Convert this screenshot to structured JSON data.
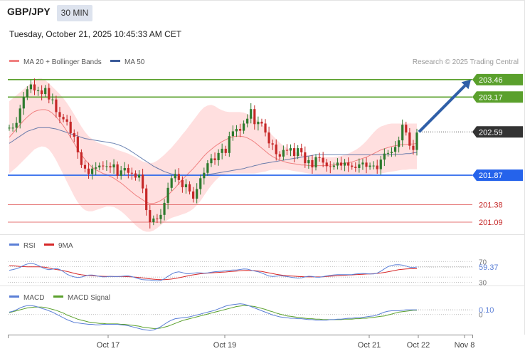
{
  "header": {
    "symbol": "GBP/JPY",
    "timeframe": "30 MIN",
    "datetime": "Tuesday, October 21, 2025 10:45:33 AM CET"
  },
  "colors": {
    "up": "#2d7a2d",
    "down": "#c62828",
    "ma20": "#f08080",
    "bb_fill": "#ffd9d9",
    "ma50": "#3b5b9a",
    "resistance": "#5aa02c",
    "support_blue": "#2563eb",
    "support_red": "#e57373",
    "arrow": "#2f5fa8",
    "rsi": "#5b7fd6",
    "rsi_ma": "#d62728",
    "macd": "#5b7fd6",
    "macd_signal": "#5aa02c"
  },
  "chart_data": [
    {
      "type": "candlestick",
      "legend": [
        "MA 20 + Bollinger Bands",
        "MA 50"
      ],
      "copyright": "Research © 2025 Trading Central",
      "x_ticks": [
        "Oct 17",
        "Oct 19",
        "Oct 21",
        "Oct 22",
        "Nov 8"
      ],
      "ylim": [
        200.9,
        203.6
      ],
      "current_price": "202.59",
      "levels": [
        {
          "value": 203.46,
          "label": "203.46",
          "kind": "resistance"
        },
        {
          "value": 203.17,
          "label": "203.17",
          "kind": "resistance"
        },
        {
          "value": 201.87,
          "label": "201.87",
          "kind": "support_blue"
        },
        {
          "value": 201.38,
          "label": "201.38",
          "kind": "support_red"
        },
        {
          "value": 201.09,
          "label": "201.09",
          "kind": "support_red"
        }
      ],
      "close": [
        202.66,
        202.66,
        202.74,
        202.98,
        203.17,
        203.3,
        203.38,
        203.28,
        203.28,
        203.22,
        203.32,
        203.13,
        203.13,
        202.92,
        202.84,
        202.8,
        202.76,
        202.57,
        202.51,
        202.25,
        202.04,
        201.98,
        201.89,
        201.98,
        202.0,
        202.03,
        202.02,
        202.02,
        202.0,
        202.05,
        201.86,
        201.95,
        201.99,
        201.91,
        201.9,
        201.83,
        201.88,
        201.65,
        201.29,
        201.09,
        201.15,
        201.14,
        201.21,
        201.41,
        201.66,
        201.82,
        201.89,
        201.79,
        201.67,
        201.72,
        201.6,
        201.48,
        201.64,
        201.82,
        201.91,
        202.07,
        202.15,
        202.12,
        202.24,
        202.31,
        202.24,
        202.52,
        202.6,
        202.64,
        202.61,
        202.73,
        202.81,
        202.97,
        202.72,
        202.76,
        202.73,
        202.58,
        202.4,
        202.38,
        202.22,
        202.18,
        202.29,
        202.28,
        202.32,
        202.19,
        202.32,
        202.25,
        202.07,
        202.12,
        202.0,
        202.17,
        202.16,
        202.08,
        202.02,
        202.01,
        202.03,
        202.08,
        202.03,
        202.08,
        202.03,
        202.01,
        201.99,
        202.05,
        202.08,
        202.01,
        202.03,
        202.03,
        201.97,
        202.13,
        202.23,
        202.24,
        202.26,
        202.34,
        202.45,
        202.71,
        202.58,
        202.36,
        202.29,
        202.58
      ],
      "open": [
        202.66,
        202.66,
        202.66,
        202.74,
        202.98,
        203.17,
        203.3,
        203.38,
        203.28,
        203.28,
        203.22,
        203.32,
        203.13,
        203.13,
        202.92,
        202.84,
        202.8,
        202.76,
        202.57,
        202.51,
        202.25,
        202.04,
        201.98,
        201.89,
        201.98,
        202.0,
        202.03,
        202.02,
        202.02,
        202.0,
        202.05,
        201.86,
        201.95,
        201.99,
        201.91,
        201.9,
        201.83,
        201.88,
        201.65,
        201.29,
        201.09,
        201.15,
        201.14,
        201.21,
        201.41,
        201.66,
        201.82,
        201.89,
        201.79,
        201.67,
        201.72,
        201.6,
        201.48,
        201.64,
        201.82,
        201.91,
        202.07,
        202.15,
        202.12,
        202.24,
        202.31,
        202.24,
        202.52,
        202.6,
        202.64,
        202.61,
        202.73,
        202.81,
        202.97,
        202.72,
        202.76,
        202.73,
        202.58,
        202.4,
        202.38,
        202.22,
        202.18,
        202.29,
        202.28,
        202.32,
        202.19,
        202.32,
        202.25,
        202.07,
        202.12,
        202.0,
        202.17,
        202.16,
        202.08,
        202.02,
        202.01,
        202.03,
        202.08,
        202.03,
        202.08,
        202.03,
        202.01,
        201.99,
        202.05,
        202.08,
        202.01,
        202.03,
        202.03,
        201.97,
        202.13,
        202.23,
        202.24,
        202.26,
        202.34,
        202.45,
        202.71,
        202.58,
        202.36,
        202.29
      ],
      "ma20": [
        202.5,
        202.57,
        202.64,
        202.71,
        202.78,
        202.84,
        202.89,
        202.93,
        202.95,
        202.96,
        202.96,
        202.94,
        202.9,
        202.84,
        202.77,
        202.69,
        202.6,
        202.5,
        202.4,
        202.3,
        202.21,
        202.13,
        202.06,
        202.0,
        201.96,
        201.93,
        201.9,
        201.88,
        201.85,
        201.82,
        201.78,
        201.74,
        201.69,
        201.64,
        201.59,
        201.54,
        201.5,
        201.46,
        201.42,
        201.4,
        201.4,
        201.42,
        201.45,
        201.49,
        201.54,
        201.6,
        201.66,
        201.73,
        201.8,
        201.86,
        201.92,
        201.98,
        202.05,
        202.12,
        202.19,
        202.25,
        202.3,
        202.35,
        202.39,
        202.43,
        202.46,
        202.49,
        202.51,
        202.52,
        202.52,
        202.51,
        202.49,
        202.46,
        202.42,
        202.37,
        202.32,
        202.27,
        202.22,
        202.18,
        202.15,
        202.12,
        202.1,
        202.08,
        202.07,
        202.06,
        202.05,
        202.04,
        202.04,
        202.03,
        202.03,
        202.03,
        202.03,
        202.03,
        202.03,
        202.04,
        202.04,
        202.05,
        202.06,
        202.07,
        202.08,
        202.09,
        202.11,
        202.13,
        202.15,
        202.17,
        202.2,
        202.23,
        202.26,
        202.29,
        202.31,
        202.33,
        202.35,
        202.36,
        202.37,
        202.38,
        202.38,
        202.39,
        202.39,
        202.4
      ],
      "bb_upper": [
        203.1,
        203.15,
        203.2,
        203.25,
        203.3,
        203.35,
        203.4,
        203.45,
        203.48,
        203.48,
        203.45,
        203.4,
        203.34,
        203.28,
        203.22,
        203.15,
        203.07,
        202.98,
        202.88,
        202.78,
        202.68,
        202.59,
        202.52,
        202.47,
        202.43,
        202.4,
        202.38,
        202.36,
        202.34,
        202.32,
        202.29,
        202.27,
        202.25,
        202.23,
        202.2,
        202.17,
        202.13,
        202.1,
        202.08,
        202.07,
        202.08,
        202.11,
        202.16,
        202.21,
        202.27,
        202.33,
        202.4,
        202.47,
        202.55,
        202.62,
        202.7,
        202.78,
        202.86,
        202.94,
        203.0,
        203.03,
        203.04,
        203.02,
        202.98,
        202.95,
        202.93,
        202.92,
        202.92,
        202.92,
        202.92,
        202.91,
        202.89,
        202.86,
        202.82,
        202.77,
        202.72,
        202.66,
        202.59,
        202.53,
        202.47,
        202.41,
        202.36,
        202.32,
        202.29,
        202.26,
        202.24,
        202.22,
        202.21,
        202.2,
        202.19,
        202.18,
        202.17,
        202.17,
        202.17,
        202.17,
        202.17,
        202.18,
        202.19,
        202.21,
        202.23,
        202.26,
        202.29,
        202.33,
        202.38,
        202.44,
        202.51,
        202.58,
        202.64,
        202.68,
        202.7,
        202.72,
        202.73,
        202.73,
        202.73,
        202.73,
        202.73,
        202.73,
        202.73,
        202.73
      ],
      "bb_lower": [
        201.9,
        201.95,
        202.0,
        202.06,
        202.12,
        202.18,
        202.24,
        202.3,
        202.33,
        202.35,
        202.34,
        202.3,
        202.22,
        202.12,
        202.0,
        201.88,
        201.76,
        201.64,
        201.52,
        201.42,
        201.34,
        201.29,
        201.27,
        201.27,
        201.29,
        201.31,
        201.33,
        201.35,
        201.35,
        201.34,
        201.31,
        201.27,
        201.22,
        201.16,
        201.1,
        201.04,
        200.99,
        200.95,
        200.93,
        200.93,
        200.95,
        200.99,
        201.04,
        201.09,
        201.13,
        201.16,
        201.18,
        201.2,
        201.22,
        201.24,
        201.27,
        201.31,
        201.37,
        201.44,
        201.53,
        201.62,
        201.7,
        201.77,
        201.83,
        201.87,
        201.89,
        201.9,
        201.9,
        201.9,
        201.9,
        201.9,
        201.9,
        201.9,
        201.9,
        201.91,
        201.92,
        201.93,
        201.95,
        201.96,
        201.96,
        201.96,
        201.96,
        201.96,
        201.95,
        201.94,
        201.93,
        201.92,
        201.91,
        201.9,
        201.89,
        201.88,
        201.87,
        201.87,
        201.87,
        201.87,
        201.87,
        201.87,
        201.87,
        201.87,
        201.87,
        201.87,
        201.87,
        201.87,
        201.88,
        201.88,
        201.88,
        201.89,
        201.89,
        201.9,
        201.91,
        201.92,
        201.93,
        201.94,
        201.95,
        201.96,
        201.96,
        201.97,
        201.97,
        201.97
      ],
      "ma50": [
        202.4,
        202.44,
        202.48,
        202.52,
        202.56,
        202.6,
        202.62,
        202.64,
        202.66,
        202.66,
        202.66,
        202.66,
        202.65,
        202.64,
        202.62,
        202.6,
        202.58,
        202.56,
        202.54,
        202.52,
        202.5,
        202.48,
        202.47,
        202.46,
        202.45,
        202.44,
        202.43,
        202.42,
        202.41,
        202.4,
        202.38,
        202.36,
        202.33,
        202.3,
        202.26,
        202.22,
        202.18,
        202.14,
        202.1,
        202.06,
        202.02,
        201.99,
        201.96,
        201.93,
        201.91,
        201.89,
        201.88,
        201.87,
        201.87,
        201.87,
        201.87,
        201.87,
        201.87,
        201.87,
        201.88,
        201.88,
        201.89,
        201.9,
        201.91,
        201.92,
        201.93,
        201.94,
        201.95,
        201.96,
        201.97,
        201.98,
        202.0,
        202.01,
        202.03,
        202.04,
        202.06,
        202.07,
        202.08,
        202.09,
        202.1,
        202.11,
        202.12,
        202.13,
        202.14,
        202.15,
        202.16,
        202.17,
        202.18,
        202.19,
        202.2,
        202.21,
        202.21,
        202.21,
        202.21,
        202.21,
        202.21,
        202.21,
        202.21,
        202.21,
        202.21,
        202.21,
        202.21,
        202.21,
        202.21,
        202.21,
        202.21,
        202.21,
        202.21,
        202.21,
        202.21,
        202.21,
        202.21,
        202.22,
        202.22,
        202.22,
        202.23,
        202.23,
        202.24,
        202.25
      ],
      "forecast_arrow": {
        "from": 202.59,
        "to": 203.46
      }
    },
    {
      "type": "line",
      "legend": [
        "RSI",
        "9MA"
      ],
      "ylim": [
        25,
        80
      ],
      "yticks": [
        {
          "value": 70,
          "label": "70"
        },
        {
          "value": 30,
          "label": "30"
        }
      ],
      "current_label": "59.37",
      "rsi": [
        53.0,
        54.4,
        56.1,
        58.7,
        62.7,
        65.2,
        66.2,
        65.2,
        62.5,
        58.8,
        55.7,
        54.2,
        55.2,
        56.6,
        54.6,
        50.4,
        45.5,
        42.3,
        40.2,
        39.0,
        40.0,
        42.1,
        43.7,
        44.0,
        42.8,
        41.1,
        40.3,
        40.5,
        41.3,
        41.0,
        40.9,
        41.4,
        42.1,
        42.2,
        40.8,
        38.7,
        36.5,
        34.9,
        34.5,
        34.2,
        33.2,
        32.4,
        33.2,
        36.5,
        41.3,
        45.7,
        48.9,
        50.1,
        48.6,
        46.5,
        46.4,
        47.5,
        48.3,
        47.9,
        47.6,
        48.0,
        49.2,
        50.3,
        50.8,
        51.2,
        52.2,
        53.1,
        53.4,
        53.6,
        54.6,
        55.6,
        55.3,
        53.4,
        51.6,
        50.2,
        47.8,
        44.8,
        42.1,
        41.2,
        41.7,
        42.3,
        41.9,
        40.9,
        39.9,
        38.8,
        37.9,
        38.4,
        40.3,
        41.5,
        41.1,
        39.8,
        39.6,
        40.8,
        42.2,
        43.2,
        44.1,
        44.6,
        44.5,
        44.5,
        44.5,
        44.8,
        45.8,
        46.5,
        46.9,
        46.5,
        46.0,
        46.0,
        47.6,
        51.2,
        55.8,
        60.0,
        62.4,
        63.6,
        63.9,
        62.9,
        61.2,
        58.9,
        58.4,
        59.4
      ],
      "ma9": [
        62.0,
        61.8,
        61.2,
        60.5,
        60.0,
        59.8,
        59.8,
        59.8,
        59.8,
        59.5,
        58.8,
        57.5,
        56.0,
        54.6,
        53.4,
        52.2,
        50.8,
        49.0,
        47.1,
        45.6,
        44.4,
        43.5,
        43.0,
        42.5,
        42.0,
        41.6,
        41.3,
        41.2,
        41.1,
        41.0,
        41.0,
        41.0,
        40.9,
        40.7,
        40.3,
        39.7,
        39.0,
        38.2,
        37.4,
        36.6,
        35.9,
        35.3,
        35.0,
        35.0,
        35.4,
        36.2,
        37.3,
        38.6,
        40.0,
        41.5,
        43.0,
        44.3,
        45.4,
        46.3,
        47.0,
        47.6,
        48.1,
        48.5,
        48.9,
        49.3,
        49.8,
        50.4,
        51.0,
        51.6,
        52.2,
        52.6,
        52.9,
        52.7,
        52.3,
        51.6,
        50.7,
        49.5,
        48.1,
        46.7,
        45.4,
        44.2,
        43.3,
        42.6,
        42.1,
        41.6,
        41.2,
        40.8,
        40.5,
        40.3,
        40.2,
        40.2,
        40.3,
        40.6,
        41.1,
        41.6,
        42.1,
        42.6,
        43.0,
        43.4,
        43.8,
        44.1,
        44.5,
        44.9,
        45.3,
        45.7,
        46.1,
        46.5,
        47.0,
        47.8,
        48.9,
        50.2,
        51.6,
        52.9,
        54.1,
        55.0,
        55.6,
        55.9,
        56.0,
        56.0
      ]
    },
    {
      "type": "line",
      "legend": [
        "MACD",
        "MACD Signal"
      ],
      "ylim": [
        -0.4,
        0.3
      ],
      "yticks": [
        {
          "value": 0,
          "label": "0"
        }
      ],
      "current_label": "0.10",
      "macd": [
        0.05,
        0.07,
        0.1,
        0.14,
        0.17,
        0.19,
        0.19,
        0.18,
        0.16,
        0.13,
        0.11,
        0.08,
        0.05,
        0.01,
        -0.03,
        -0.07,
        -0.11,
        -0.14,
        -0.17,
        -0.18,
        -0.19,
        -0.2,
        -0.21,
        -0.21,
        -0.22,
        -0.22,
        -0.21,
        -0.21,
        -0.21,
        -0.21,
        -0.21,
        -0.22,
        -0.23,
        -0.24,
        -0.26,
        -0.28,
        -0.3,
        -0.32,
        -0.33,
        -0.34,
        -0.33,
        -0.3,
        -0.26,
        -0.21,
        -0.16,
        -0.12,
        -0.09,
        -0.08,
        -0.07,
        -0.06,
        -0.05,
        -0.03,
        -0.01,
        0.01,
        0.03,
        0.05,
        0.07,
        0.09,
        0.12,
        0.15,
        0.18,
        0.2,
        0.21,
        0.22,
        0.23,
        0.22,
        0.2,
        0.17,
        0.14,
        0.11,
        0.08,
        0.05,
        0.02,
        -0.01,
        -0.03,
        -0.05,
        -0.06,
        -0.07,
        -0.08,
        -0.08,
        -0.09,
        -0.09,
        -0.1,
        -0.11,
        -0.11,
        -0.12,
        -0.12,
        -0.12,
        -0.12,
        -0.11,
        -0.11,
        -0.1,
        -0.1,
        -0.09,
        -0.08,
        -0.08,
        -0.07,
        -0.07,
        -0.06,
        -0.05,
        -0.04,
        -0.03,
        -0.01,
        0.02,
        0.05,
        0.07,
        0.08,
        0.08,
        0.08,
        0.09,
        0.1,
        0.1,
        0.1,
        0.1
      ],
      "signal": [
        0.04,
        0.06,
        0.08,
        0.1,
        0.12,
        0.14,
        0.15,
        0.16,
        0.16,
        0.16,
        0.15,
        0.13,
        0.11,
        0.09,
        0.06,
        0.03,
        -0.01,
        -0.04,
        -0.07,
        -0.1,
        -0.12,
        -0.14,
        -0.16,
        -0.17,
        -0.18,
        -0.19,
        -0.19,
        -0.2,
        -0.2,
        -0.2,
        -0.2,
        -0.21,
        -0.21,
        -0.22,
        -0.23,
        -0.24,
        -0.25,
        -0.27,
        -0.28,
        -0.29,
        -0.3,
        -0.3,
        -0.29,
        -0.27,
        -0.25,
        -0.22,
        -0.19,
        -0.16,
        -0.13,
        -0.11,
        -0.09,
        -0.07,
        -0.05,
        -0.03,
        -0.01,
        0.01,
        0.03,
        0.05,
        0.07,
        0.09,
        0.11,
        0.13,
        0.15,
        0.17,
        0.18,
        0.19,
        0.19,
        0.18,
        0.17,
        0.15,
        0.13,
        0.11,
        0.08,
        0.06,
        0.03,
        0.01,
        -0.01,
        -0.03,
        -0.04,
        -0.05,
        -0.06,
        -0.07,
        -0.08,
        -0.09,
        -0.09,
        -0.1,
        -0.1,
        -0.11,
        -0.11,
        -0.11,
        -0.11,
        -0.11,
        -0.11,
        -0.1,
        -0.1,
        -0.1,
        -0.09,
        -0.09,
        -0.08,
        -0.08,
        -0.07,
        -0.06,
        -0.05,
        -0.04,
        -0.03,
        -0.01,
        0.01,
        0.03,
        0.05,
        0.06,
        0.07,
        0.08,
        0.09,
        0.09
      ]
    }
  ]
}
